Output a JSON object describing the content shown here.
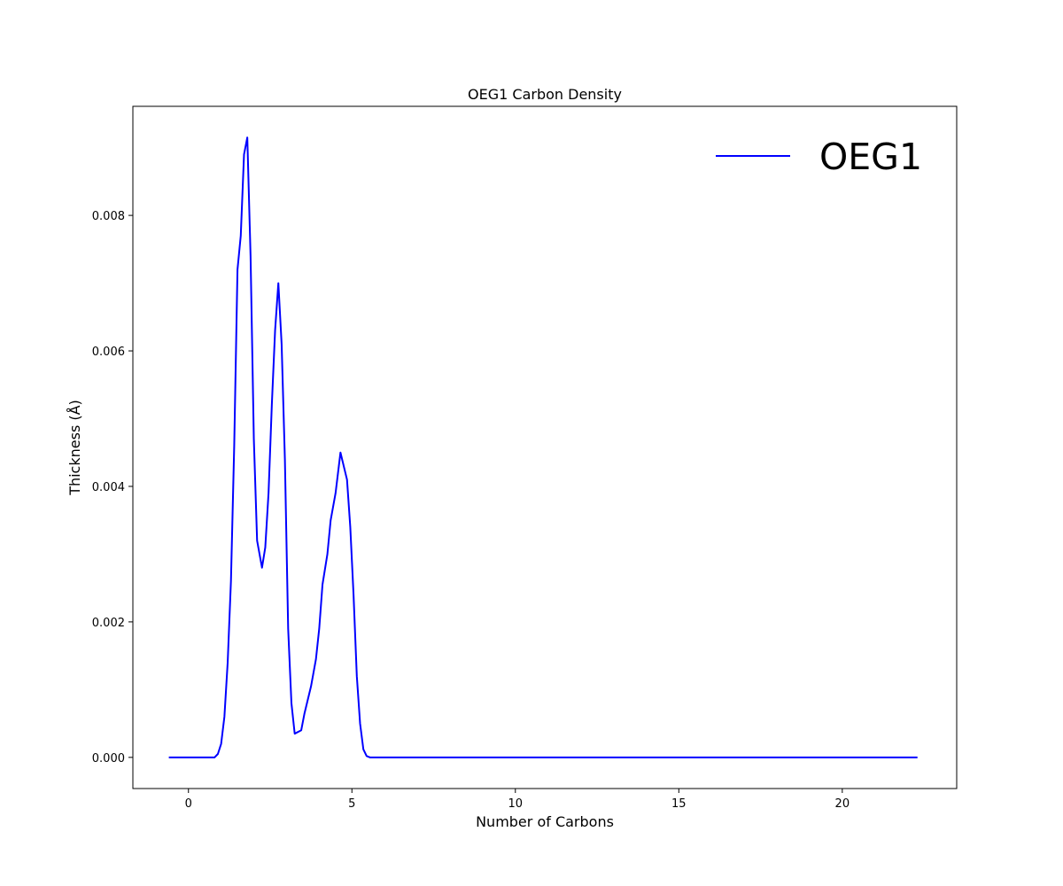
{
  "chart_data": {
    "type": "line",
    "title": "OEG1 Carbon Density",
    "xlabel": "Number of Carbons",
    "ylabel": "Thickness (Å)",
    "xlim": [
      -1.7,
      23.5
    ],
    "ylim": [
      -0.00046,
      0.00961
    ],
    "xticks": [
      0,
      5,
      10,
      15,
      20
    ],
    "xtick_labels": [
      "0",
      "5",
      "10",
      "15",
      "20"
    ],
    "yticks": [
      0.0,
      0.002,
      0.004,
      0.006,
      0.008
    ],
    "ytick_labels": [
      "0.000",
      "0.002",
      "0.004",
      "0.006",
      "0.008"
    ],
    "legend_position": "top-right",
    "grid": false,
    "series": [
      {
        "name": "OEG1",
        "color": "#0000ff",
        "points": [
          [
            -0.6,
            0.0
          ],
          [
            0.8,
            0.0
          ],
          [
            0.9,
            5e-05
          ],
          [
            1.0,
            0.0002
          ],
          [
            1.1,
            0.0006
          ],
          [
            1.2,
            0.0014
          ],
          [
            1.3,
            0.0026
          ],
          [
            1.4,
            0.0046
          ],
          [
            1.5,
            0.0072
          ],
          [
            1.6,
            0.0077
          ],
          [
            1.7,
            0.0089
          ],
          [
            1.8,
            0.00915
          ],
          [
            1.9,
            0.0074
          ],
          [
            2.0,
            0.0047
          ],
          [
            2.1,
            0.0032
          ],
          [
            2.25,
            0.0028
          ],
          [
            2.35,
            0.0031
          ],
          [
            2.45,
            0.0039
          ],
          [
            2.55,
            0.0052
          ],
          [
            2.65,
            0.0063
          ],
          [
            2.75,
            0.007
          ],
          [
            2.85,
            0.0061
          ],
          [
            2.95,
            0.0044
          ],
          [
            3.05,
            0.0019
          ],
          [
            3.15,
            0.0008
          ],
          [
            3.25,
            0.00035
          ],
          [
            3.45,
            0.0004
          ],
          [
            3.55,
            0.00065
          ],
          [
            3.75,
            0.00105
          ],
          [
            3.9,
            0.00145
          ],
          [
            4.0,
            0.0019
          ],
          [
            4.1,
            0.00255
          ],
          [
            4.25,
            0.003
          ],
          [
            4.35,
            0.0035
          ],
          [
            4.5,
            0.0039
          ],
          [
            4.65,
            0.0045
          ],
          [
            4.85,
            0.0041
          ],
          [
            4.95,
            0.0034
          ],
          [
            5.05,
            0.0024
          ],
          [
            5.15,
            0.0012
          ],
          [
            5.25,
            0.0005
          ],
          [
            5.35,
            0.00012
          ],
          [
            5.45,
            2e-05
          ],
          [
            5.55,
            0.0
          ],
          [
            22.3,
            0.0
          ]
        ]
      }
    ]
  }
}
